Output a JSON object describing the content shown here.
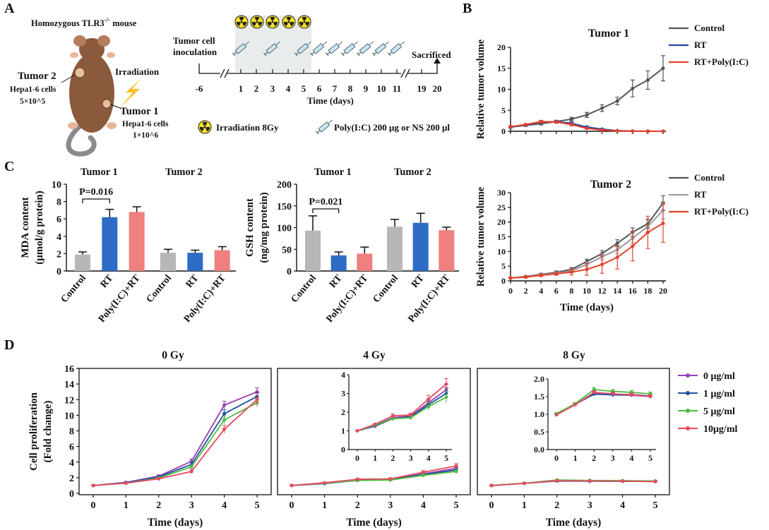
{
  "colors": {
    "green_label": "#2e9a5e",
    "purple_label": "#8e2a8e",
    "ctrl_gray": "#555555",
    "rt_blue": "#2244aa",
    "combo_red": "#e8402a",
    "bar_gray": "#b7b7b7",
    "bar_blue": "#2d6cc4",
    "bar_pink": "#f07f80",
    "dose_purple": "#9b3fb3",
    "dose_blue": "#1f4fa0",
    "dose_green": "#4dbb3f",
    "dose_red": "#e84a5f"
  },
  "panel_a": {
    "letter": "A",
    "mouse_title": "Homozygous TLR3",
    "mouse_superscript": "-/-",
    "mouse_title_suffix": " mouse",
    "tumor2_label": "Tumor 2",
    "tumor2_cells": "Hepa1-6 cells",
    "tumor2_count": "5×10^5",
    "tumor1_label": "Tumor 1",
    "tumor1_cells": "Hepa1-6 cells",
    "tumor1_count": "1×10^6",
    "irradiation_label": "Irradiation",
    "inoculation_line1": "Tumor cell",
    "inoculation_line2": "inoculation",
    "sacrificed_label": "Sacrificed",
    "timeline_ticks": [
      "-6",
      "1",
      "2",
      "3",
      "4",
      "5",
      "6",
      "7",
      "8",
      "9",
      "10",
      "11",
      "19",
      "20"
    ],
    "time_axis_label": "Time (days)",
    "legend_irradiation": "Irradiation  8Gy",
    "legend_injection": "Poly(I:C) 200 μg or NS 200 μl",
    "radiation_icon": "radiation-icon",
    "syringe_icon": "syringe-icon",
    "lightning_icon": "lightning-icon",
    "mouse_icon": "mouse-illustration"
  },
  "panel_b": {
    "letter": "B",
    "legend": [
      "Control",
      "RT",
      "RT+Poly(I:C)"
    ]
  },
  "panel_c": {
    "letter": "C",
    "tumor1_header": "Tumor 1",
    "tumor2_header": "Tumor 2"
  },
  "panel_d": {
    "letter": "D",
    "legend": [
      "0 μg/ml",
      "1 μg/ml",
      "5 μg/ml",
      "10μg/ml"
    ]
  },
  "chart_data": [
    {
      "id": "B-tumor1",
      "type": "line",
      "title": "Tumor 1",
      "xlabel": "",
      "ylabel": "Relative tumor volume",
      "ylim": [
        0,
        20
      ],
      "yticks": [
        0,
        5,
        10,
        15,
        20
      ],
      "x": [
        0,
        2,
        4,
        6,
        8,
        10,
        12,
        14,
        16,
        18,
        20
      ],
      "series": [
        {
          "name": "Control",
          "values": [
            1.0,
            1.4,
            1.8,
            2.3,
            2.9,
            3.9,
            5.5,
            7.2,
            10.2,
            12.2,
            15.0
          ],
          "errors": [
            0.2,
            0.2,
            0.3,
            0.3,
            0.4,
            0.6,
            0.8,
            0.9,
            2.0,
            2.2,
            3.0
          ]
        },
        {
          "name": "RT",
          "values": [
            1.0,
            1.5,
            2.2,
            2.3,
            1.9,
            1.0,
            0.5,
            0.15,
            0.05,
            0.02,
            0.0
          ],
          "errors": [
            0.2,
            0.2,
            0.3,
            0.3,
            0.3,
            0.2,
            0.1,
            0.05,
            0.02,
            0.0,
            0.0
          ]
        },
        {
          "name": "RT+Poly(I:C)",
          "values": [
            1.1,
            1.6,
            2.3,
            2.2,
            1.6,
            0.7,
            0.3,
            0.1,
            0.03,
            0.0,
            0.0
          ],
          "errors": [
            0.2,
            0.2,
            0.3,
            0.3,
            0.3,
            0.2,
            0.1,
            0.05,
            0.02,
            0.0,
            0.0
          ]
        }
      ]
    },
    {
      "id": "B-tumor2",
      "type": "line",
      "title": "Tumor 2",
      "xlabel": "Time (days)",
      "ylabel": "Relative tumor volume",
      "ylim": [
        0,
        30
      ],
      "yticks": [
        0,
        5,
        10,
        15,
        20,
        25,
        30
      ],
      "x": [
        0,
        2,
        4,
        6,
        8,
        10,
        12,
        14,
        16,
        18,
        20
      ],
      "series": [
        {
          "name": "Control",
          "values": [
            1.0,
            1.5,
            2.2,
            2.9,
            3.9,
            6.6,
            9.3,
            12.8,
            16.6,
            19.4,
            26.5
          ],
          "errors": [
            0.2,
            0.3,
            0.4,
            0.5,
            0.6,
            0.8,
            1.0,
            1.2,
            1.4,
            1.6,
            2.5
          ]
        },
        {
          "name": "RT",
          "values": [
            1.0,
            1.4,
            2.0,
            2.6,
            3.4,
            5.6,
            8.2,
            10.6,
            14.5,
            18.5,
            24.0
          ],
          "errors": [
            0.2,
            0.3,
            0.4,
            0.5,
            0.6,
            0.8,
            1.0,
            1.3,
            1.6,
            2.0,
            3.0
          ]
        },
        {
          "name": "RT+Poly(I:C)",
          "values": [
            1.0,
            1.3,
            1.9,
            2.4,
            3.0,
            3.9,
            5.6,
            8.0,
            11.8,
            16.5,
            19.6
          ],
          "errors": [
            0.2,
            0.3,
            0.4,
            0.5,
            1.0,
            2.0,
            3.0,
            4.0,
            5.0,
            5.5,
            6.5
          ]
        }
      ]
    },
    {
      "id": "C-mda",
      "type": "bar",
      "ylabel_line1": "MDA content",
      "ylabel_line2": "(μmol/g protein)",
      "ylim": [
        0,
        10
      ],
      "yticks": [
        0,
        2,
        4,
        6,
        8,
        10
      ],
      "categories": [
        "Control",
        "RT",
        "Poly(I:C)+RT",
        "Control",
        "RT",
        "Poly(I:C)+RT"
      ],
      "values": [
        1.9,
        6.2,
        6.8,
        2.1,
        2.1,
        2.4
      ],
      "errors": [
        0.3,
        0.9,
        0.6,
        0.4,
        0.3,
        0.4
      ],
      "groups": [
        "Tumor 1",
        "Tumor 1",
        "Tumor 1",
        "Tumor 2",
        "Tumor 2",
        "Tumor 2"
      ],
      "annotation": "P=0.016"
    },
    {
      "id": "C-gsh",
      "type": "bar",
      "ylabel_line1": "GSH content",
      "ylabel_line2": "(ng/mg protein)",
      "ylim": [
        0,
        200
      ],
      "yticks": [
        0,
        50,
        100,
        150,
        200
      ],
      "categories": [
        "Control",
        "RT",
        "Poly(I:C)+RT",
        "Control",
        "RT",
        "Poly(I:C)+RT"
      ],
      "values": [
        93,
        36,
        40,
        102,
        111,
        94
      ],
      "errors": [
        34,
        8,
        15,
        17,
        22,
        7
      ],
      "groups": [
        "Tumor 1",
        "Tumor 1",
        "Tumor 1",
        "Tumor 2",
        "Tumor 2",
        "Tumor 2"
      ],
      "annotation": "P=0.021"
    },
    {
      "id": "D-0gy",
      "type": "line",
      "title": "0 Gy",
      "xlabel": "Time (days)",
      "ylabel_line1": "Cell proliferation",
      "ylabel_line2": "(Fold change)",
      "ylim": [
        0,
        16
      ],
      "yticks": [
        0,
        2,
        4,
        6,
        8,
        10,
        12,
        14,
        16
      ],
      "x": [
        0,
        1,
        2,
        3,
        4,
        5
      ],
      "series": [
        {
          "name": "0 μg/ml",
          "values": [
            1.0,
            1.4,
            2.2,
            4.1,
            11.3,
            13.0
          ],
          "errors": [
            0.05,
            0.1,
            0.15,
            0.3,
            0.5,
            0.5
          ]
        },
        {
          "name": "1 μg/ml",
          "values": [
            1.0,
            1.35,
            2.1,
            3.7,
            10.2,
            12.4
          ],
          "errors": [
            0.05,
            0.1,
            0.15,
            0.3,
            0.5,
            0.5
          ]
        },
        {
          "name": "5 μg/ml",
          "values": [
            1.0,
            1.3,
            1.95,
            3.4,
            9.4,
            11.6
          ],
          "errors": [
            0.05,
            0.1,
            0.15,
            0.3,
            0.5,
            0.5
          ]
        },
        {
          "name": "10μg/ml",
          "values": [
            1.0,
            1.3,
            1.85,
            2.8,
            8.2,
            12.0
          ],
          "errors": [
            0.05,
            0.1,
            0.15,
            0.3,
            0.5,
            0.8
          ]
        }
      ]
    },
    {
      "id": "D-4gy",
      "type": "line",
      "title": "4 Gy",
      "xlabel": "Time (days)",
      "ylim": [
        0,
        16
      ],
      "x": [
        0,
        1,
        2,
        3,
        4,
        5
      ],
      "series": [
        {
          "name": "0 μg/ml",
          "values": [
            1.0,
            1.3,
            1.7,
            1.8,
            2.5,
            3.2
          ],
          "errors": [
            0.05,
            0.05,
            0.1,
            0.1,
            0.2,
            0.3
          ]
        },
        {
          "name": "1 μg/ml",
          "values": [
            1.0,
            1.25,
            1.65,
            1.75,
            2.4,
            3.0
          ],
          "errors": [
            0.05,
            0.05,
            0.1,
            0.1,
            0.2,
            0.3
          ]
        },
        {
          "name": "5 μg/ml",
          "values": [
            1.0,
            1.3,
            1.65,
            1.7,
            2.3,
            2.8
          ],
          "errors": [
            0.05,
            0.05,
            0.1,
            0.1,
            0.2,
            0.3
          ]
        },
        {
          "name": "10μg/ml",
          "values": [
            1.0,
            1.35,
            1.8,
            1.85,
            2.7,
            3.5
          ],
          "errors": [
            0.05,
            0.05,
            0.1,
            0.1,
            0.2,
            0.3
          ]
        }
      ],
      "inset": {
        "ylim": [
          0,
          4
        ],
        "yticks": [
          0,
          1,
          2,
          3,
          4
        ],
        "xticks": [
          0,
          1,
          2,
          3,
          4,
          5
        ]
      }
    },
    {
      "id": "D-8gy",
      "type": "line",
      "title": "8 Gy",
      "xlabel": "Time (days)",
      "ylim": [
        0,
        16
      ],
      "x": [
        0,
        1,
        2,
        3,
        4,
        5
      ],
      "series": [
        {
          "name": "0 μg/ml",
          "values": [
            1.0,
            1.28,
            1.6,
            1.57,
            1.56,
            1.52
          ],
          "errors": [
            0.02,
            0.03,
            0.05,
            0.05,
            0.05,
            0.05
          ]
        },
        {
          "name": "1 μg/ml",
          "values": [
            1.0,
            1.28,
            1.57,
            1.55,
            1.54,
            1.5
          ],
          "errors": [
            0.02,
            0.03,
            0.05,
            0.05,
            0.05,
            0.05
          ]
        },
        {
          "name": "5 μg/ml",
          "values": [
            1.02,
            1.3,
            1.7,
            1.65,
            1.62,
            1.58
          ],
          "errors": [
            0.02,
            0.03,
            0.05,
            0.05,
            0.05,
            0.05
          ]
        },
        {
          "name": "10μg/ml",
          "values": [
            0.98,
            1.27,
            1.62,
            1.58,
            1.55,
            1.5
          ],
          "errors": [
            0.02,
            0.03,
            0.05,
            0.05,
            0.05,
            0.05
          ]
        }
      ],
      "inset": {
        "ylim": [
          0,
          2
        ],
        "yticks": [
          0.0,
          0.5,
          1.0,
          1.5,
          2.0
        ],
        "xticks": [
          0,
          1,
          2,
          3,
          4,
          5
        ]
      }
    }
  ]
}
